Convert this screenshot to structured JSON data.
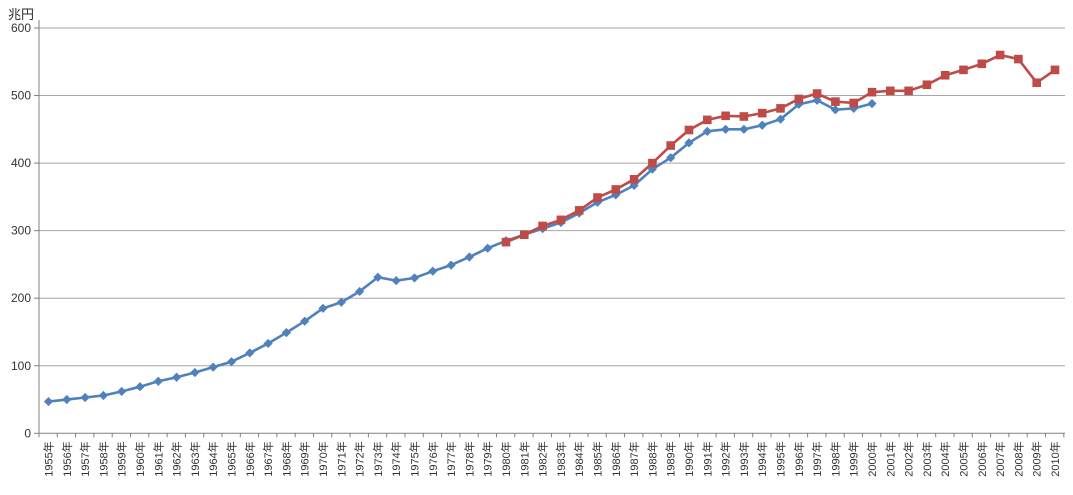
{
  "chart_data": {
    "type": "line",
    "title": "",
    "ylabel": "兆円",
    "xlabel": "",
    "ylim": [
      0,
      600
    ],
    "yticks": [
      0,
      100,
      200,
      300,
      400,
      500,
      600
    ],
    "grid": "horizontal",
    "legend_position": "none",
    "gridline_color": "#a6a6a6",
    "axis_color": "#808080",
    "categories": [
      "1955年",
      "1956年",
      "1957年",
      "1958年",
      "1959年",
      "1960年",
      "1961年",
      "1962年",
      "1963年",
      "1964年",
      "1965年",
      "1966年",
      "1967年",
      "1968年",
      "1969年",
      "1970年",
      "1971年",
      "1972年",
      "1973年",
      "1974年",
      "1975年",
      "1976年",
      "1977年",
      "1978年",
      "1979年",
      "1980年",
      "1981年",
      "1982年",
      "1983年",
      "1984年",
      "1985年",
      "1986年",
      "1987年",
      "1988年",
      "1989年",
      "1990年",
      "1991年",
      "1992年",
      "1993年",
      "1994年",
      "1995年",
      "1996年",
      "1997年",
      "1998年",
      "1999年",
      "2000年",
      "2001年",
      "2002年",
      "2003年",
      "2004年",
      "2005年",
      "2006年",
      "2007年",
      "2008年",
      "2009年",
      "2010年"
    ],
    "series": [
      {
        "name": "blue-diamond-series",
        "marker": "diamond",
        "color": "#4F81BD",
        "start_index": 0,
        "values": [
          47,
          50,
          53,
          56,
          62,
          69,
          77,
          83,
          90,
          98,
          106,
          119,
          133,
          149,
          166,
          185,
          194,
          210,
          231,
          226,
          230,
          240,
          249,
          261,
          274,
          285,
          294,
          303,
          312,
          326,
          342,
          353,
          367,
          391,
          408,
          430,
          447,
          450,
          450,
          456,
          465,
          487,
          493,
          479,
          481,
          488
        ]
      },
      {
        "name": "red-square-series",
        "marker": "square",
        "color": "#BE4B48",
        "start_index": 25,
        "values": [
          283,
          294,
          307,
          316,
          330,
          349,
          361,
          376,
          400,
          426,
          449,
          464,
          470,
          469,
          474,
          481,
          495,
          503,
          491,
          489,
          505,
          507,
          507,
          516,
          530,
          538,
          547,
          560,
          554,
          519,
          538
        ]
      }
    ]
  }
}
